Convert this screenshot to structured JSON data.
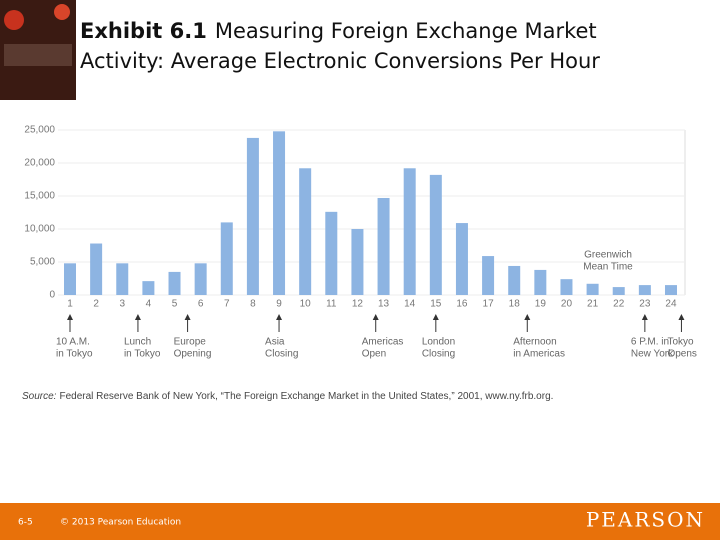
{
  "chart_data": {
    "type": "bar",
    "title_label": "Exhibit 6.1",
    "title_lines": [
      "Measuring Foreign Exchange Market",
      "Activity: Average Electronic Conversions Per Hour"
    ],
    "categories": [
      "1",
      "2",
      "3",
      "4",
      "5",
      "6",
      "7",
      "8",
      "9",
      "10",
      "11",
      "12",
      "13",
      "14",
      "15",
      "16",
      "17",
      "18",
      "19",
      "20",
      "21",
      "22",
      "23",
      "24"
    ],
    "values": [
      4800,
      7800,
      4800,
      2100,
      3500,
      4800,
      11000,
      23800,
      24800,
      19200,
      12600,
      10000,
      14700,
      19200,
      18200,
      10900,
      5900,
      4400,
      3800,
      2400,
      1700,
      1200,
      1500,
      1500
    ],
    "color": "#8db4e2",
    "ylim": [
      0,
      25000
    ],
    "yticks": [
      0,
      {
        "value": 5000,
        "label": "5,000"
      },
      {
        "value": 10000,
        "label": "10,000"
      },
      {
        "value": 15000,
        "label": "15,000"
      },
      {
        "value": 20000,
        "label": "20,000"
      },
      {
        "value": 25000,
        "label": "25,000"
      }
    ],
    "annotations": [
      {
        "x": 1,
        "lines": [
          "10 A.M.",
          "in Tokyo"
        ]
      },
      {
        "x": 3.6,
        "lines": [
          "Lunch",
          "in Tokyo"
        ]
      },
      {
        "x": 5.5,
        "lines": [
          "Europe",
          "Opening"
        ]
      },
      {
        "x": 9,
        "lines": [
          "Asia",
          "Closing"
        ]
      },
      {
        "x": 12.7,
        "lines": [
          "Americas",
          "Open"
        ]
      },
      {
        "x": 15,
        "lines": [
          "London",
          "Closing"
        ]
      },
      {
        "x": 18.5,
        "lines": [
          "Afternoon",
          "in Americas"
        ]
      },
      {
        "x": 23,
        "lines": [
          "6 P.M. in",
          "New York"
        ]
      },
      {
        "x": 24.4,
        "lines": [
          "Tokyo",
          "Opens"
        ]
      }
    ],
    "axis_note": [
      "Greenwich",
      "Mean Time"
    ],
    "source_label": "Source:",
    "source": "Federal Reserve Bank of New York, “The Foreign Exchange Market in the United States,” 2001, www.ny.frb.org."
  },
  "footer": {
    "page": "6-5",
    "copyright": "© 2013 Pearson Education",
    "brand": "PEARSON"
  }
}
